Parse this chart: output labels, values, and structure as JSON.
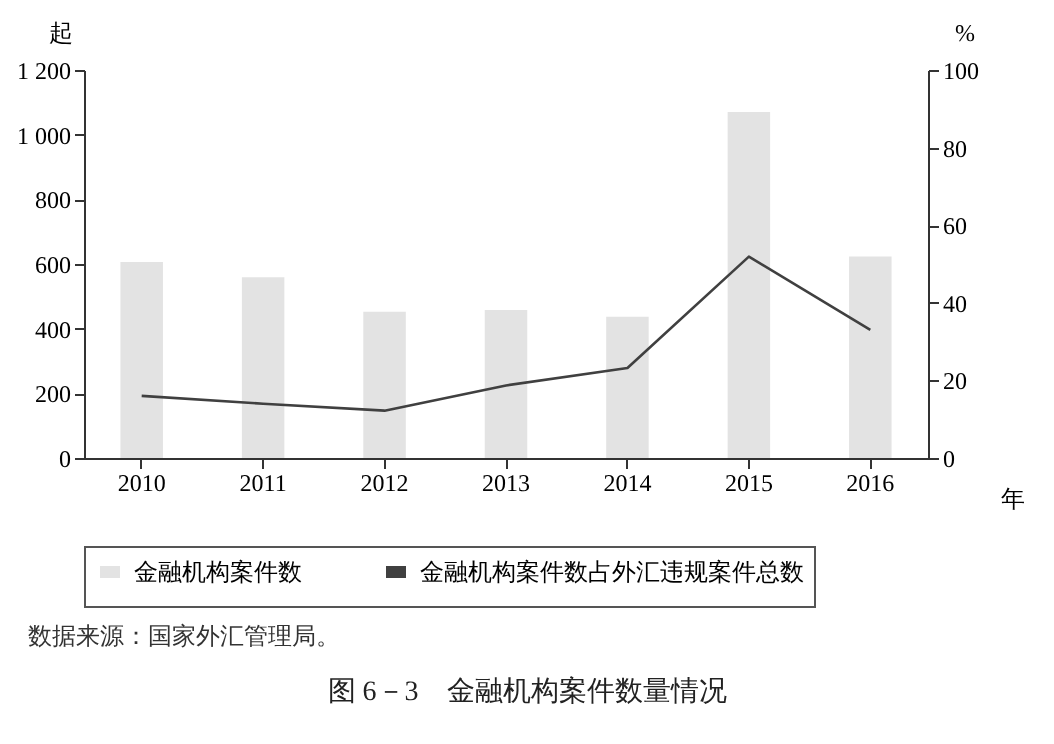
{
  "chart_data": {
    "type": "bar",
    "title": "图 6－3　金融机构案件数量情况",
    "xlabel": "年",
    "ylabel": "起",
    "y2label": "%",
    "categories": [
      "2010",
      "2011",
      "2012",
      "2013",
      "2014",
      "2015",
      "2016"
    ],
    "series": [
      {
        "name": "金融机构案件数",
        "color": "#e3e3e3",
        "values": [
          606,
          559,
          452,
          458,
          437,
          1070,
          623
        ]
      },
      {
        "name": "金融机构案件数占外汇违规案件总数",
        "type": "line",
        "axis": "y2",
        "color": "#404040",
        "values": [
          16,
          14,
          12.2,
          18.7,
          23.2,
          51.9,
          33
        ]
      }
    ],
    "ylim": [
      0,
      1200
    ],
    "yticks": [
      0,
      200,
      400,
      600,
      800,
      {
        "value": 1000,
        "label": "1 000"
      },
      {
        "value": 1200,
        "label": "1 200"
      }
    ],
    "y2lim": [
      0,
      100
    ],
    "y2ticks": [
      0,
      20,
      40,
      60,
      80,
      100
    ],
    "legend": "bottom",
    "grid": false,
    "annotations": [
      "数据来源：国家外汇管理局。"
    ]
  }
}
